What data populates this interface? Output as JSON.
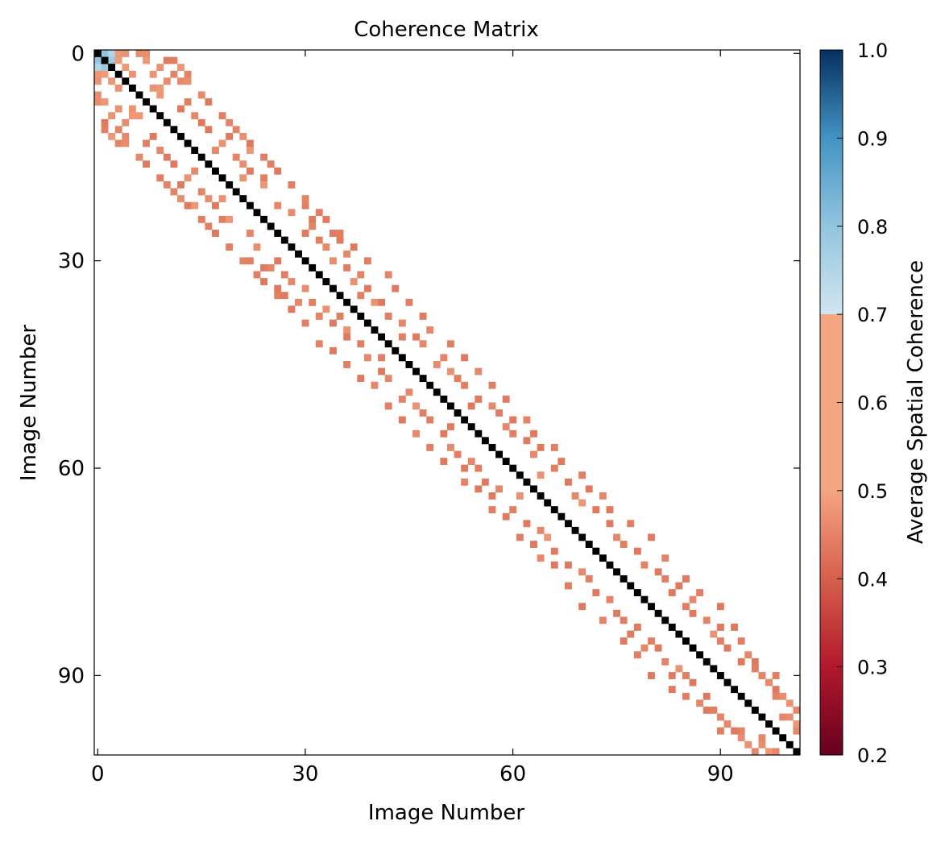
{
  "chart_data": {
    "type": "heatmap",
    "title": "Coherence Matrix",
    "xlabel": "Image Number",
    "ylabel": "Image Number",
    "n": 102,
    "x_ticks": [
      0,
      30,
      60,
      90
    ],
    "y_ticks": [
      0,
      30,
      60,
      90
    ],
    "colorbar": {
      "label": "Average Spatial Coherence",
      "range": [
        0.2,
        1.0
      ],
      "ticks": [
        "0.2",
        "0.3",
        "0.4",
        "0.5",
        "0.6",
        "0.7",
        "0.8",
        "0.9",
        "1.0"
      ],
      "colormap": "RdBu, white below threshold",
      "threshold": 0.7
    },
    "diagonal_value": 1.0,
    "diagonal_color": "#000000",
    "cells": [
      [
        0,
        1,
        0.8
      ],
      [
        0,
        2,
        0.75
      ],
      [
        1,
        2,
        0.78
      ],
      [
        1,
        3,
        0.65
      ],
      [
        0,
        3,
        0.62
      ],
      [
        0,
        4,
        0.6
      ],
      [
        2,
        4,
        0.62
      ],
      [
        3,
        5,
        0.6
      ],
      [
        0,
        7,
        0.58
      ],
      [
        1,
        10,
        0.5
      ],
      [
        1,
        11,
        0.52
      ],
      [
        2,
        12,
        0.62
      ],
      [
        4,
        12,
        0.56
      ],
      [
        3,
        8,
        0.6
      ],
      [
        5,
        8,
        0.6
      ],
      [
        5,
        9,
        0.64
      ],
      [
        6,
        9,
        0.62
      ],
      [
        4,
        10,
        0.57
      ],
      [
        3,
        13,
        0.54
      ],
      [
        7,
        13,
        0.52
      ],
      [
        8,
        12,
        0.5
      ],
      [
        9,
        14,
        0.55
      ],
      [
        10,
        15,
        0.5
      ],
      [
        11,
        16,
        0.5
      ],
      [
        10,
        19,
        0.54
      ],
      [
        12,
        21,
        0.58
      ],
      [
        13,
        18,
        0.6
      ],
      [
        14,
        17,
        0.56
      ],
      [
        15,
        20,
        0.54
      ],
      [
        12,
        19,
        0.5
      ],
      [
        16,
        21,
        0.58
      ],
      [
        14,
        22,
        0.62
      ],
      [
        17,
        22,
        0.5
      ],
      [
        16,
        25,
        0.52
      ],
      [
        18,
        24,
        0.52
      ],
      [
        18,
        21,
        0.6
      ],
      [
        19,
        24,
        0.62
      ],
      [
        22,
        26,
        0.55
      ],
      [
        23,
        28,
        0.58
      ],
      [
        22,
        30,
        0.52
      ],
      [
        24,
        31,
        0.5
      ],
      [
        25,
        31,
        0.54
      ],
      [
        23,
        32,
        0.52
      ],
      [
        26,
        30,
        0.5
      ],
      [
        27,
        32,
        0.52
      ],
      [
        28,
        33,
        0.56
      ],
      [
        26,
        34,
        0.5
      ],
      [
        27,
        35,
        0.5
      ],
      [
        30,
        34,
        0.58
      ],
      [
        29,
        36,
        0.55
      ],
      [
        31,
        36,
        0.52
      ],
      [
        32,
        38,
        0.54
      ],
      [
        33,
        37,
        0.6
      ],
      [
        34,
        39,
        0.5
      ],
      [
        36,
        40,
        0.6
      ],
      [
        35,
        38,
        0.52
      ],
      [
        36,
        41,
        0.5
      ],
      [
        38,
        42,
        0.52
      ],
      [
        39,
        44,
        0.55
      ],
      [
        41,
        44,
        0.52
      ],
      [
        41,
        46,
        0.5
      ],
      [
        42,
        47,
        0.55
      ],
      [
        45,
        49,
        0.56
      ],
      [
        44,
        50,
        0.54
      ],
      [
        46,
        51,
        0.6
      ],
      [
        47,
        52,
        0.52
      ],
      [
        48,
        53,
        0.52
      ],
      [
        50,
        55,
        0.5
      ],
      [
        51,
        54,
        0.5
      ],
      [
        51,
        57,
        0.56
      ],
      [
        52,
        58,
        0.52
      ],
      [
        54,
        59,
        0.55
      ],
      [
        53,
        60,
        0.5
      ],
      [
        55,
        60,
        0.52
      ],
      [
        56,
        62,
        0.5
      ],
      [
        58,
        63,
        0.55
      ],
      [
        57,
        64,
        0.5
      ],
      [
        60,
        66,
        0.52
      ],
      [
        61,
        64,
        0.6
      ],
      [
        62,
        68,
        0.5
      ],
      [
        64,
        69,
        0.55
      ],
      [
        63,
        71,
        0.5
      ],
      [
        65,
        70,
        0.62
      ],
      [
        66,
        72,
        0.5
      ],
      [
        68,
        74,
        0.5
      ],
      [
        70,
        75,
        0.56
      ],
      [
        71,
        76,
        0.52
      ],
      [
        72,
        78,
        0.5
      ],
      [
        74,
        79,
        0.54
      ],
      [
        75,
        81,
        0.5
      ],
      [
        76,
        82,
        0.52
      ],
      [
        78,
        83,
        0.5
      ],
      [
        77,
        84,
        0.5
      ],
      [
        80,
        85,
        0.52
      ],
      [
        79,
        86,
        0.56
      ],
      [
        81,
        86,
        0.5
      ],
      [
        82,
        88,
        0.54
      ],
      [
        84,
        89,
        0.6
      ],
      [
        83,
        90,
        0.5
      ],
      [
        85,
        90,
        0.52
      ],
      [
        86,
        91,
        0.5
      ],
      [
        88,
        93,
        0.5
      ],
      [
        87,
        94,
        0.55
      ],
      [
        89,
        95,
        0.52
      ],
      [
        90,
        96,
        0.54
      ],
      [
        91,
        97,
        0.56
      ],
      [
        92,
        98,
        0.5
      ],
      [
        93,
        99,
        0.58
      ],
      [
        94,
        100,
        0.6
      ],
      [
        95,
        101,
        0.55
      ],
      [
        96,
        100,
        0.58
      ],
      [
        97,
        101,
        0.62
      ],
      [
        98,
        101,
        0.56
      ],
      [
        96,
        99,
        0.55
      ],
      [
        93,
        98,
        0.54
      ],
      [
        90,
        98,
        0.52
      ],
      [
        88,
        95,
        0.5
      ],
      [
        85,
        93,
        0.52
      ],
      [
        83,
        92,
        0.5
      ],
      [
        80,
        90,
        0.5
      ],
      [
        78,
        87,
        0.52
      ],
      [
        76,
        85,
        0.5
      ],
      [
        73,
        82,
        0.54
      ],
      [
        70,
        80,
        0.5
      ],
      [
        68,
        77,
        0.52
      ],
      [
        66,
        74,
        0.5
      ],
      [
        64,
        73,
        0.56
      ],
      [
        61,
        70,
        0.52
      ],
      [
        59,
        67,
        0.5
      ],
      [
        57,
        66,
        0.52
      ],
      [
        55,
        63,
        0.5
      ],
      [
        53,
        62,
        0.54
      ],
      [
        50,
        59,
        0.5
      ],
      [
        48,
        57,
        0.52
      ],
      [
        46,
        55,
        0.56
      ],
      [
        44,
        53,
        0.5
      ],
      [
        42,
        51,
        0.52
      ],
      [
        40,
        48,
        0.55
      ],
      [
        38,
        47,
        0.5
      ],
      [
        36,
        45,
        0.52
      ],
      [
        34,
        43,
        0.5
      ],
      [
        32,
        42,
        0.54
      ],
      [
        30,
        39,
        0.52
      ],
      [
        28,
        37,
        0.5
      ],
      [
        26,
        35,
        0.52
      ],
      [
        24,
        33,
        0.5
      ],
      [
        21,
        30,
        0.54
      ],
      [
        19,
        28,
        0.52
      ],
      [
        17,
        26,
        0.5
      ],
      [
        15,
        24,
        0.52
      ],
      [
        13,
        22,
        0.5
      ],
      [
        11,
        20,
        0.54
      ],
      [
        9,
        18,
        0.52
      ],
      [
        7,
        16,
        0.5
      ],
      [
        6,
        15,
        0.56
      ],
      [
        4,
        13,
        0.58
      ],
      [
        3,
        11,
        0.54
      ],
      [
        2,
        9,
        0.6
      ],
      [
        1,
        7,
        0.62
      ],
      [
        0,
        6,
        0.58
      ]
    ]
  }
}
